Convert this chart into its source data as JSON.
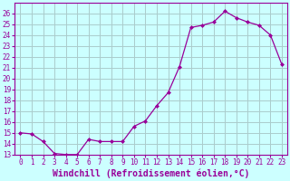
{
  "x": [
    0,
    1,
    2,
    3,
    4,
    5,
    6,
    7,
    8,
    9,
    10,
    11,
    12,
    13,
    14,
    15,
    16,
    17,
    18,
    19,
    20,
    21,
    22,
    23
  ],
  "y": [
    15.0,
    14.9,
    14.2,
    13.1,
    13.0,
    13.0,
    14.4,
    14.2,
    14.2,
    14.2,
    15.6,
    16.1,
    17.5,
    18.7,
    21.1,
    24.7,
    24.9,
    25.2,
    26.2,
    25.6,
    25.2,
    24.9,
    24.0,
    21.3
  ],
  "line_color": "#990099",
  "marker": "D",
  "marker_size": 2,
  "bg_color": "#ccffff",
  "grid_color": "#aacccc",
  "xlabel": "Windchill (Refroidissement éolien,°C)",
  "xlabel_color": "#990099",
  "xlim": [
    -0.5,
    23.5
  ],
  "ylim": [
    13,
    27
  ],
  "yticks": [
    13,
    14,
    15,
    16,
    17,
    18,
    19,
    20,
    21,
    22,
    23,
    24,
    25,
    26
  ],
  "xticks": [
    0,
    1,
    2,
    3,
    4,
    5,
    6,
    7,
    8,
    9,
    10,
    11,
    12,
    13,
    14,
    15,
    16,
    17,
    18,
    19,
    20,
    21,
    22,
    23
  ],
  "tick_color": "#990099",
  "tick_labelsize": 5.5,
  "xlabel_fontsize": 7,
  "spine_color": "#990099"
}
